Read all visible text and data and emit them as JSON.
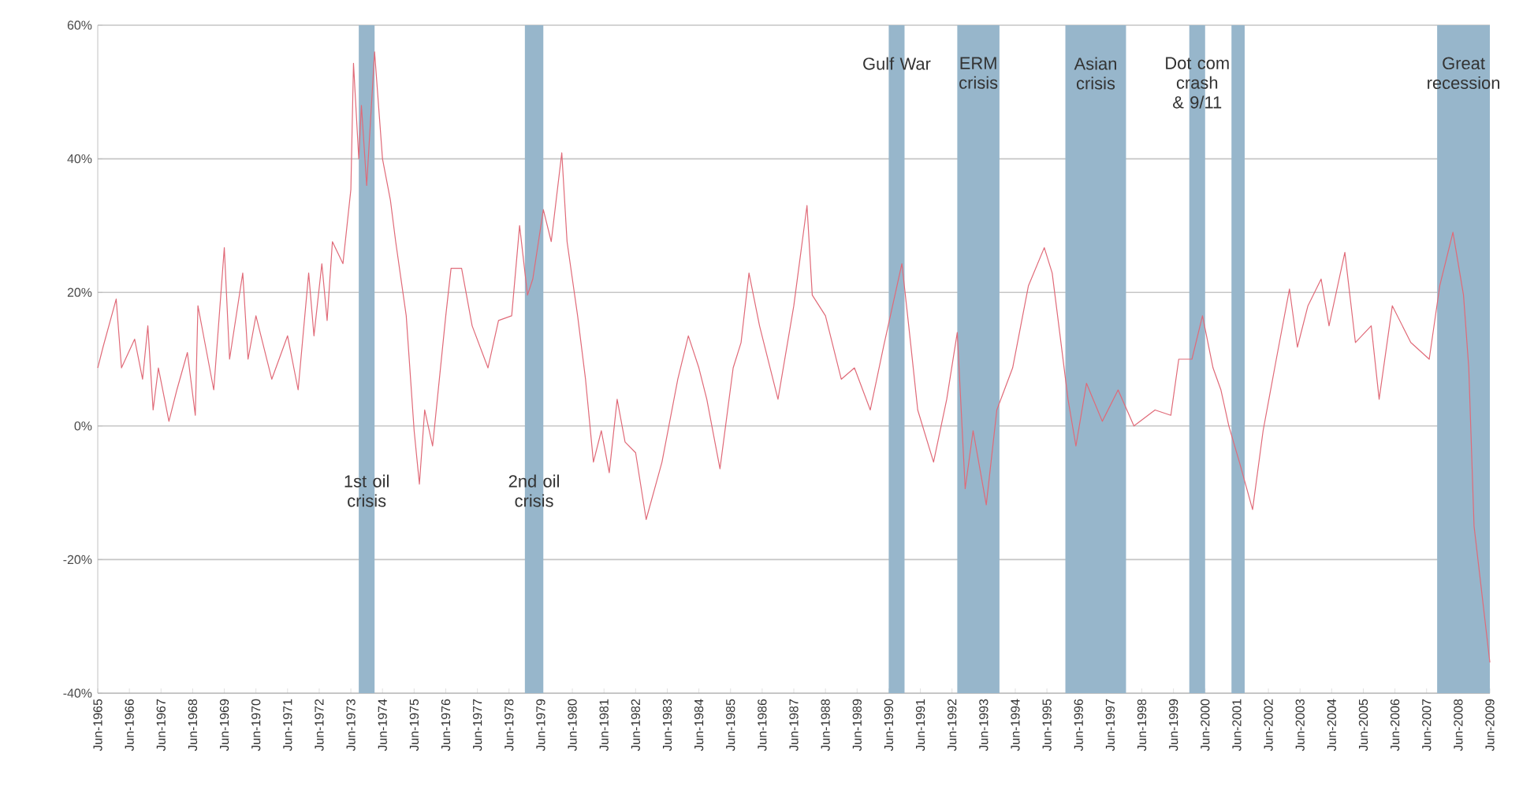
{
  "chart_data": {
    "type": "line",
    "x": [
      "1965-06",
      "1965-08",
      "1966-01",
      "1966-03",
      "1966-08",
      "1966-11",
      "1967-01",
      "1967-03",
      "1967-05",
      "1967-09",
      "1967-12",
      "1968-04",
      "1968-07",
      "1968-08",
      "1969-02",
      "1969-06",
      "1969-08",
      "1970-01",
      "1970-03",
      "1970-06",
      "1970-12",
      "1971-06",
      "1971-10",
      "1972-02",
      "1972-04",
      "1972-07",
      "1972-09",
      "1972-11",
      "1973-03",
      "1973-06",
      "1973-07",
      "1973-09",
      "1973-10",
      "1973-12",
      "1974-03",
      "1974-06",
      "1974-09",
      "1974-11",
      "1975-03",
      "1975-06",
      "1975-08",
      "1975-10",
      "1976-01",
      "1976-06",
      "1976-08",
      "1976-12",
      "1977-04",
      "1977-10",
      "1978-02",
      "1978-07",
      "1978-10",
      "1979-01",
      "1979-03",
      "1979-07",
      "1979-10",
      "1980-02",
      "1980-04",
      "1980-08",
      "1980-11",
      "1981-02",
      "1981-05",
      "1981-08",
      "1981-11",
      "1982-02",
      "1982-06",
      "1982-10",
      "1983-04",
      "1983-10",
      "1984-02",
      "1984-06",
      "1984-09",
      "1985-02",
      "1985-07",
      "1985-10",
      "1986-01",
      "1986-05",
      "1986-12",
      "1987-06",
      "1987-11",
      "1988-01",
      "1988-06",
      "1988-12",
      "1989-05",
      "1989-11",
      "1990-04",
      "1990-11",
      "1991-02",
      "1991-05",
      "1991-11",
      "1992-04",
      "1992-08",
      "1992-11",
      "1993-02",
      "1993-07",
      "1993-11",
      "1994-05",
      "1994-11",
      "1995-05",
      "1995-08",
      "1995-11",
      "1996-02",
      "1996-05",
      "1996-09",
      "1997-03",
      "1997-09",
      "1998-03",
      "1998-11",
      "1999-05",
      "1999-08",
      "2000-01",
      "2000-05",
      "2000-09",
      "2000-12",
      "2001-03",
      "2001-07",
      "2001-12",
      "2002-04",
      "2002-09",
      "2003-02",
      "2003-05",
      "2003-09",
      "2004-02",
      "2004-05",
      "2004-11",
      "2005-03",
      "2005-09",
      "2005-12",
      "2006-05",
      "2006-12",
      "2007-07",
      "2007-11",
      "2008-04",
      "2008-08",
      "2008-10",
      "2008-12",
      "2009-06"
    ],
    "values": [
      8.7,
      11.8,
      19,
      8.7,
      13,
      7,
      15,
      2.4,
      8.7,
      0.7,
      5.4,
      11,
      1.6,
      18,
      5.4,
      26.7,
      10,
      22.9,
      10,
      16.5,
      7,
      13.5,
      5.4,
      22.9,
      13.5,
      24.3,
      15.8,
      27.6,
      24.3,
      35.4,
      54.3,
      40,
      48,
      36,
      56,
      40,
      33.8,
      27.6,
      16.5,
      -0.7,
      -8.7,
      2.4,
      -3,
      16.5,
      23.6,
      23.6,
      15,
      8.7,
      15.8,
      16.5,
      30,
      19.6,
      22,
      32.4,
      27.6,
      40.9,
      27.6,
      16.5,
      7,
      -5.4,
      -0.7,
      -7,
      4,
      -2.4,
      -4,
      -14,
      -5.4,
      7,
      13.5,
      8.7,
      4,
      -6.4,
      8.7,
      12.5,
      22.9,
      15,
      4,
      18,
      33,
      19.6,
      16.5,
      7,
      8.7,
      2.4,
      11.8,
      24.3,
      13.5,
      2.4,
      -5.4,
      4,
      14,
      -9.4,
      -0.7,
      -11.8,
      2.4,
      8.7,
      21,
      26.7,
      22.9,
      13.5,
      4,
      -3,
      6.4,
      0.7,
      5.4,
      0,
      2.4,
      1.6,
      10,
      10,
      16.5,
      8.7,
      5.4,
      0,
      -5.4,
      -12.5,
      -0.7,
      10,
      20.5,
      11.8,
      18,
      22,
      15,
      26,
      12.5,
      15,
      4,
      18,
      12.5,
      10,
      21,
      29,
      19.6,
      8.7,
      -15,
      -35.4
    ],
    "color": "#e06a78",
    "xlim": [
      "1965-06",
      "2009-06"
    ],
    "xticks": [
      {
        "value": "1965-06",
        "label": "Jun-1965"
      },
      {
        "value": "1966-06",
        "label": "Jun-1966"
      },
      {
        "value": "1967-06",
        "label": "Jun-1967"
      },
      {
        "value": "1968-06",
        "label": "Jun-1968"
      },
      {
        "value": "1969-06",
        "label": "Jun-1969"
      },
      {
        "value": "1970-06",
        "label": "Jun-1970"
      },
      {
        "value": "1971-06",
        "label": "Jun-1971"
      },
      {
        "value": "1972-06",
        "label": "Jun-1972"
      },
      {
        "value": "1973-06",
        "label": "Jun-1973"
      },
      {
        "value": "1974-06",
        "label": "Jun-1974"
      },
      {
        "value": "1975-06",
        "label": "Jun-1975"
      },
      {
        "value": "1976-06",
        "label": "Jun-1976"
      },
      {
        "value": "1977-06",
        "label": "Jun-1977"
      },
      {
        "value": "1978-06",
        "label": "Jun-1978"
      },
      {
        "value": "1979-06",
        "label": "Jun-1979"
      },
      {
        "value": "1980-06",
        "label": "Jun-1980"
      },
      {
        "value": "1981-06",
        "label": "Jun-1981"
      },
      {
        "value": "1982-06",
        "label": "Jun-1982"
      },
      {
        "value": "1983-06",
        "label": "Jun-1983"
      },
      {
        "value": "1984-06",
        "label": "Jun-1984"
      },
      {
        "value": "1985-06",
        "label": "Jun-1985"
      },
      {
        "value": "1986-06",
        "label": "Jun-1986"
      },
      {
        "value": "1987-06",
        "label": "Jun-1987"
      },
      {
        "value": "1988-06",
        "label": "Jun-1988"
      },
      {
        "value": "1989-06",
        "label": "Jun-1989"
      },
      {
        "value": "1990-06",
        "label": "Jun-1990"
      },
      {
        "value": "1991-06",
        "label": "Jun-1991"
      },
      {
        "value": "1992-06",
        "label": "Jun-1992"
      },
      {
        "value": "1993-06",
        "label": "Jun-1993"
      },
      {
        "value": "1994-06",
        "label": "Jun-1994"
      },
      {
        "value": "1995-06",
        "label": "Jun-1995"
      },
      {
        "value": "1996-06",
        "label": "Jun-1996"
      },
      {
        "value": "1997-06",
        "label": "Jun-1997"
      },
      {
        "value": "1998-06",
        "label": "Jun-1998"
      },
      {
        "value": "1999-06",
        "label": "Jun-1999"
      },
      {
        "value": "2000-06",
        "label": "Jun-2000"
      },
      {
        "value": "2001-06",
        "label": "Jun-2001"
      },
      {
        "value": "2002-06",
        "label": "Jun-2002"
      },
      {
        "value": "2003-06",
        "label": "Jun-2003"
      },
      {
        "value": "2004-06",
        "label": "Jun-2004"
      },
      {
        "value": "2005-06",
        "label": "Jun-2005"
      },
      {
        "value": "2006-06",
        "label": "Jun-2006"
      },
      {
        "value": "2007-06",
        "label": "Jun-2007"
      },
      {
        "value": "2008-06",
        "label": "Jun-2008"
      },
      {
        "value": "2009-06",
        "label": "Jun-2009"
      }
    ],
    "ylim": [
      -40,
      60
    ],
    "yticks": [
      {
        "value": -40,
        "label": "-40%"
      },
      {
        "value": -20,
        "label": "-20%"
      },
      {
        "value": 0,
        "label": "0%"
      },
      {
        "value": 20,
        "label": "20%"
      },
      {
        "value": 40,
        "label": "40%"
      },
      {
        "value": 60,
        "label": "60%"
      }
    ],
    "grid": "y",
    "bands": [
      {
        "axis": "x",
        "from": "1973-09",
        "to": "1974-03",
        "label": "1st oil crisis",
        "color": "#97b6cb"
      },
      {
        "axis": "x",
        "from": "1978-12",
        "to": "1979-07",
        "label": "2nd oil crisis",
        "color": "#97b6cb"
      },
      {
        "axis": "x",
        "from": "1990-06",
        "to": "1990-12",
        "label": "Gulf War",
        "color": "#97b6cb"
      },
      {
        "axis": "x",
        "from": "1992-08",
        "to": "1993-12",
        "label": "ERM crisis",
        "color": "#97b6cb"
      },
      {
        "axis": "x",
        "from": "1996-01",
        "to": "1997-12",
        "label": "Asian crisis",
        "color": "#97b6cb"
      },
      {
        "axis": "x",
        "from": "1999-12",
        "to": "2000-06",
        "label": "Dot com crash & 9/11",
        "color": "#97b6cb"
      },
      {
        "axis": "x",
        "from": "2001-04",
        "to": "2001-09",
        "color": "#97b6cb"
      },
      {
        "axis": "x",
        "from": "2007-10",
        "to": "2009-06",
        "label": "Great recession",
        "color": "#97b6cb"
      }
    ]
  }
}
